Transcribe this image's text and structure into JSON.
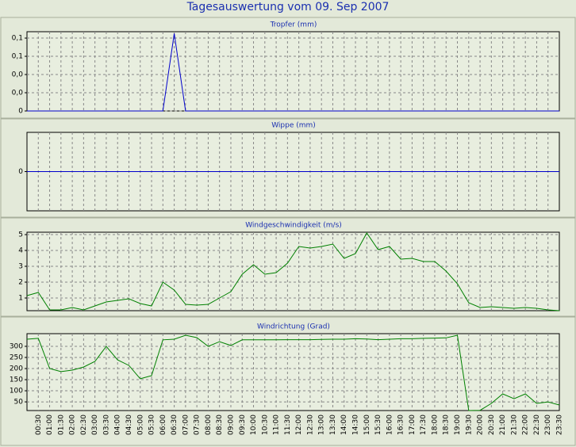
{
  "title": "Tagesauswertung vom 09. Sep 2007",
  "chart_data": [
    {
      "type": "line",
      "title": "Tropfer (mm)",
      "color": "#0000cc",
      "values": [
        0,
        0,
        0,
        0,
        0,
        0,
        0,
        0,
        0,
        0,
        0,
        0,
        0,
        0.085,
        0,
        0,
        0,
        0,
        0,
        0,
        0,
        0,
        0,
        0,
        0,
        0,
        0,
        0,
        0,
        0,
        0,
        0,
        0,
        0,
        0,
        0,
        0,
        0,
        0,
        0,
        0,
        0,
        0,
        0,
        0,
        0,
        0,
        0
      ],
      "ylim": [
        0,
        0.087
      ],
      "yticks": [
        {
          "value": 0.08,
          "label": "0,1"
        },
        {
          "value": 0.06,
          "label": "0,1"
        },
        {
          "value": 0.04,
          "label": "0,0"
        },
        {
          "value": 0.02,
          "label": "0,0"
        },
        0
      ],
      "grid": true
    },
    {
      "type": "line",
      "title": "Wippe (mm)",
      "color": "#0000cc",
      "values": [
        0,
        0,
        0,
        0,
        0,
        0,
        0,
        0,
        0,
        0,
        0,
        0,
        0,
        0,
        0,
        0,
        0,
        0,
        0,
        0,
        0,
        0,
        0,
        0,
        0,
        0,
        0,
        0,
        0,
        0,
        0,
        0,
        0,
        0,
        0,
        0,
        0,
        0,
        0,
        0,
        0,
        0,
        0,
        0,
        0,
        0,
        0,
        0
      ],
      "ylim": [
        -1,
        1
      ],
      "yticks": [
        0
      ],
      "grid": true
    },
    {
      "type": "line",
      "title": "Windgeschwindigkeit (m/s)",
      "color": "#008000",
      "values": [
        1.15,
        1.35,
        0.25,
        0.25,
        0.4,
        0.25,
        0.5,
        0.75,
        0.85,
        0.95,
        0.65,
        0.5,
        2.0,
        1.5,
        0.6,
        0.55,
        0.6,
        1.0,
        1.4,
        2.5,
        3.1,
        2.5,
        2.6,
        3.2,
        4.25,
        4.15,
        4.25,
        4.4,
        3.5,
        3.8,
        5.1,
        4.05,
        4.25,
        3.45,
        3.5,
        3.3,
        3.3,
        2.7,
        1.9,
        0.7,
        0.4,
        0.45,
        0.4,
        0.35,
        0.4,
        0.35,
        0.25,
        0.2
      ],
      "ylim": [
        0.2,
        5.15
      ],
      "yticks": [
        5,
        4,
        3,
        2,
        1
      ],
      "grid": true
    },
    {
      "type": "line",
      "title": "Windrichtung (Grad)",
      "color": "#008000",
      "categories": [
        null,
        "00:30",
        "01:00",
        "01:30",
        "02:00",
        "02:30",
        "03:00",
        "03:30",
        "04:00",
        "04:30",
        "05:00",
        "05:30",
        "06:00",
        "06:30",
        "07:00",
        "07:30",
        "08:00",
        "08:30",
        "09:00",
        "09:30",
        "10:00",
        "10:30",
        "11:00",
        "11:30",
        "12:00",
        "12:30",
        "13:00",
        "13:30",
        "14:00",
        "14:30",
        "15:00",
        "15:30",
        "16:00",
        "16:30",
        "17:00",
        "17:30",
        "18:00",
        "18:30",
        "19:00",
        "19:30",
        "20:00",
        "20:30",
        "21:00",
        "21:30",
        "22:00",
        "22:30",
        "23:00",
        "23:30"
      ],
      "values": [
        332,
        336,
        200,
        186,
        193,
        207,
        232,
        300,
        239,
        214,
        154,
        168,
        329,
        332,
        350,
        339,
        300,
        321,
        304,
        329,
        329,
        329,
        329,
        330,
        330,
        330,
        331,
        332,
        332,
        334,
        333,
        330,
        332,
        334,
        334,
        336,
        337,
        338,
        350,
        11,
        12,
        43,
        86,
        64,
        86,
        43,
        50,
        36
      ],
      "ylim": [
        11,
        357
      ],
      "yticks": [
        300,
        250,
        200,
        150,
        100,
        50
      ],
      "grid": true
    }
  ]
}
